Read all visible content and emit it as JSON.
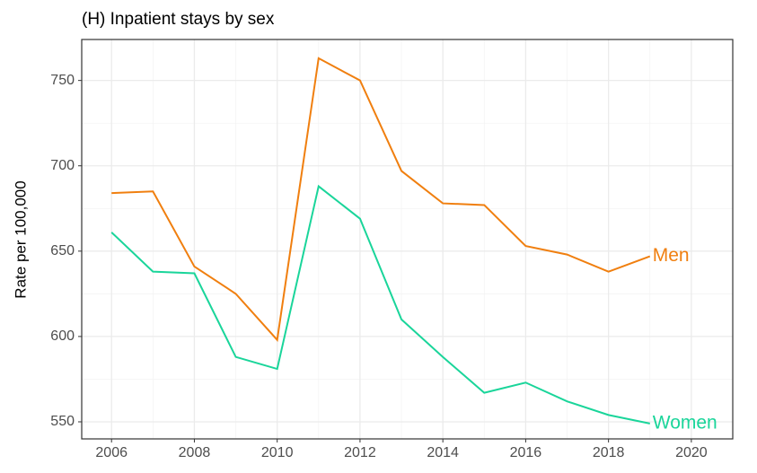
{
  "chart_data": {
    "type": "line",
    "title": "(H) Inpatient stays by sex",
    "y_label": "Rate per 100,000",
    "x": [
      2006,
      2007,
      2008,
      2009,
      2010,
      2011,
      2012,
      2013,
      2014,
      2015,
      2016,
      2017,
      2018,
      2019
    ],
    "series": [
      {
        "name": "Men",
        "color": "#f07f0f",
        "values": [
          684,
          685,
          641,
          625,
          598,
          763,
          750,
          697,
          678,
          677,
          653,
          648,
          638,
          647
        ]
      },
      {
        "name": "Women",
        "color": "#1ad59a",
        "values": [
          661,
          638,
          637,
          588,
          581,
          688,
          669,
          610,
          588,
          567,
          573,
          562,
          554,
          549
        ]
      }
    ],
    "xlim": [
      2005.28,
      2021
    ],
    "xticks": [
      2006,
      2008,
      2010,
      2012,
      2014,
      2016,
      2018,
      2020
    ],
    "ylim": [
      540,
      774
    ],
    "yticks": [
      550,
      600,
      650,
      700,
      750
    ],
    "grid": true
  }
}
